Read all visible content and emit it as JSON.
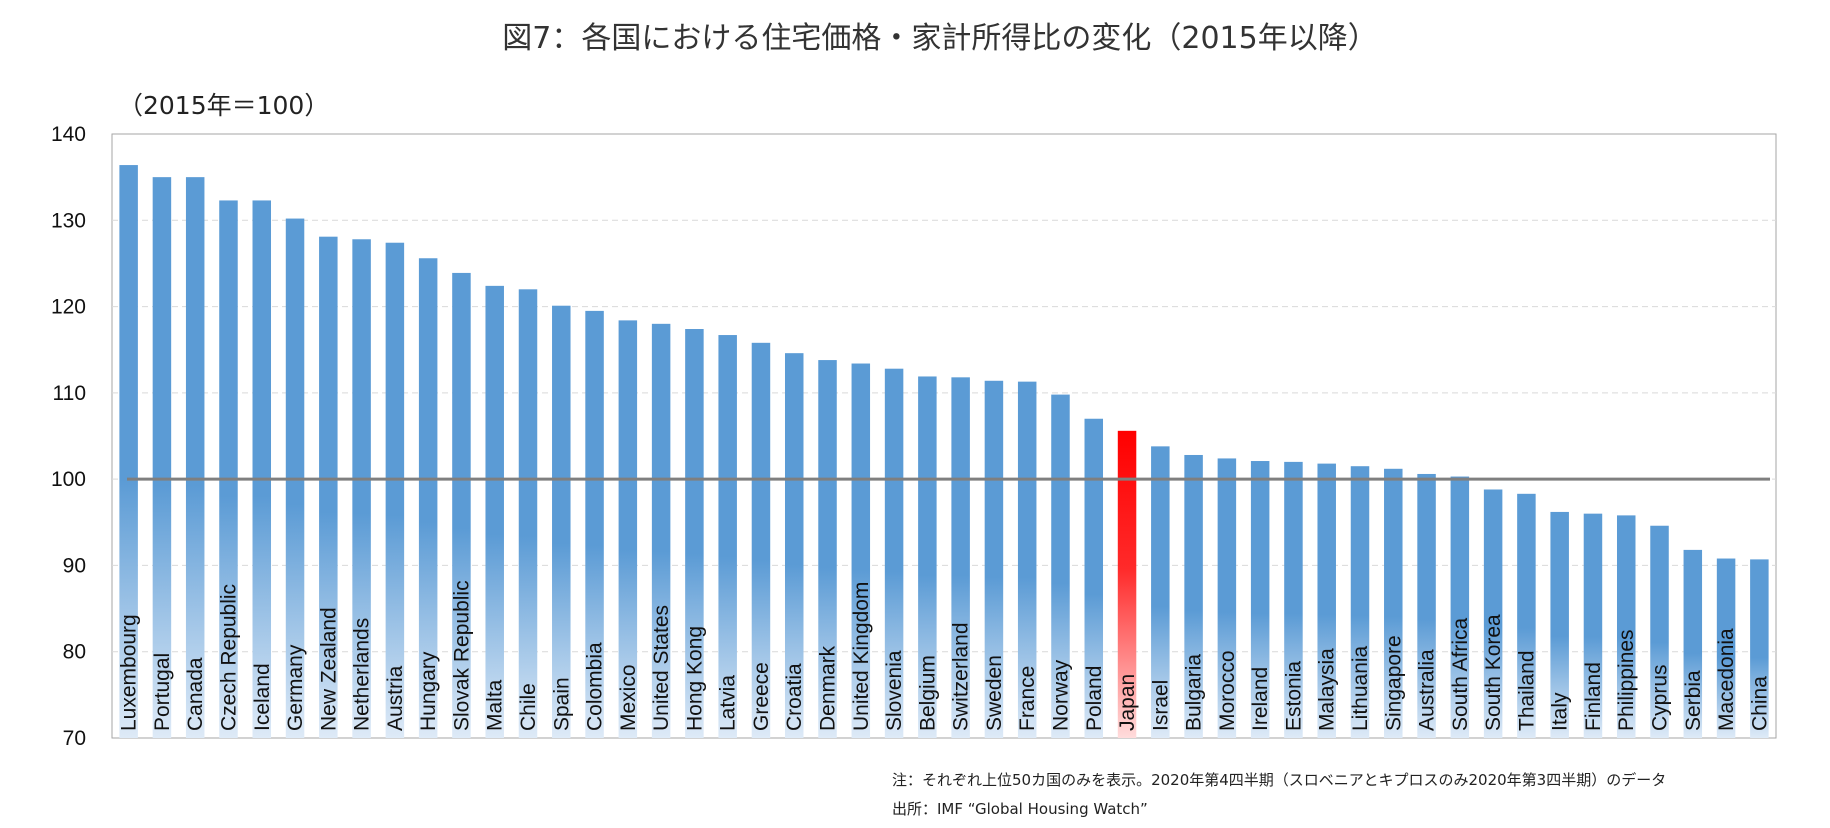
{
  "chart_data": {
    "type": "bar",
    "title": "図7：各国における住宅価格・家計所得比の変化（2015年以降）",
    "unit_label": "（2015年＝100）",
    "ylim": [
      70,
      140
    ],
    "yticks": [
      70,
      80,
      90,
      100,
      110,
      120,
      130,
      140
    ],
    "grid": true,
    "reference_line": 100,
    "highlight_category": "Japan",
    "colors": {
      "bar": "#5b9bd5",
      "highlight": "#ff0000",
      "reference_line": "#7f7f7f",
      "grid": "#d9d9d9"
    },
    "categories": [
      "Luxembourg",
      "Portugal",
      "Canada",
      "Czech Republic",
      "Iceland",
      "Germany",
      "New Zealand",
      "Netherlands",
      "Austria",
      "Hungary",
      "Slovak Republic",
      "Malta",
      "Chile",
      "Spain",
      "Colombia",
      "Mexico",
      "United States",
      "Hong Kong",
      "Latvia",
      "Greece",
      "Croatia",
      "Denmark",
      "United Kingdom",
      "Slovenia",
      "Belgium",
      "Switzerland",
      "Sweden",
      "France",
      "Norway",
      "Poland",
      "Japan",
      "Israel",
      "Bulgaria",
      "Morocco",
      "Ireland",
      "Estonia",
      "Malaysia",
      "Lithuania",
      "Singapore",
      "Australia",
      "South Africa",
      "South Korea",
      "Thailand",
      "Italy",
      "Finland",
      "Philippines",
      "Cyprus",
      "Serbia",
      "Macedonia",
      "China"
    ],
    "values": [
      136.4,
      135.0,
      135.0,
      132.3,
      132.3,
      130.2,
      128.1,
      127.8,
      127.4,
      125.6,
      123.9,
      122.4,
      122.0,
      120.1,
      119.5,
      118.4,
      118.0,
      117.4,
      116.7,
      115.8,
      114.6,
      113.8,
      113.4,
      112.8,
      111.9,
      111.8,
      111.4,
      111.3,
      109.8,
      107.0,
      105.6,
      103.8,
      102.8,
      102.4,
      102.1,
      102.0,
      101.8,
      101.5,
      101.2,
      100.6,
      100.3,
      98.8,
      98.3,
      96.2,
      96.0,
      95.8,
      94.6,
      91.8,
      90.8,
      90.7
    ]
  },
  "notes": {
    "note": "注：それぞれ上位50カ国のみを表示。2020年第4四半期（スロベニアとキプロスのみ2020年第3四半期）のデータ",
    "source": "出所：IMF “Global Housing Watch”"
  }
}
